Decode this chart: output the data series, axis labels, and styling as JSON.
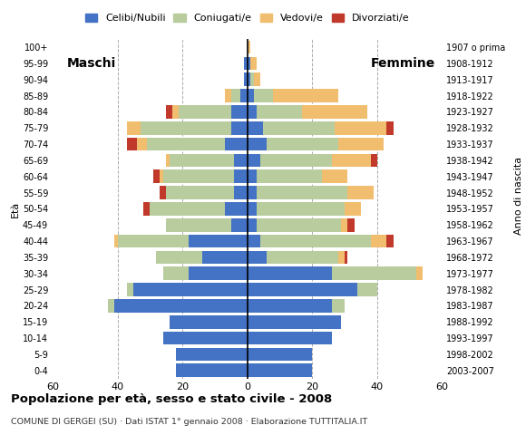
{
  "age_groups": [
    "0-4",
    "5-9",
    "10-14",
    "15-19",
    "20-24",
    "25-29",
    "30-34",
    "35-39",
    "40-44",
    "45-49",
    "50-54",
    "55-59",
    "60-64",
    "65-69",
    "70-74",
    "75-79",
    "80-84",
    "85-89",
    "90-94",
    "95-99",
    "100+"
  ],
  "birth_years": [
    "2003-2007",
    "1998-2002",
    "1993-1997",
    "1988-1992",
    "1983-1987",
    "1978-1982",
    "1973-1977",
    "1968-1972",
    "1963-1967",
    "1958-1962",
    "1953-1957",
    "1948-1952",
    "1943-1947",
    "1938-1942",
    "1933-1937",
    "1928-1932",
    "1923-1927",
    "1918-1922",
    "1913-1917",
    "1908-1912",
    "1907 o prima"
  ],
  "males": {
    "celibe": [
      22,
      22,
      26,
      24,
      41,
      35,
      18,
      14,
      18,
      5,
      7,
      4,
      4,
      4,
      7,
      5,
      5,
      2,
      1,
      1,
      0
    ],
    "coniugato": [
      0,
      0,
      0,
      0,
      2,
      2,
      8,
      14,
      22,
      20,
      23,
      21,
      22,
      20,
      24,
      28,
      16,
      3,
      0,
      0,
      0
    ],
    "vedovo": [
      0,
      0,
      0,
      0,
      0,
      0,
      0,
      0,
      1,
      0,
      0,
      0,
      1,
      1,
      3,
      4,
      2,
      2,
      0,
      0,
      0
    ],
    "divorziato": [
      0,
      0,
      0,
      0,
      0,
      0,
      0,
      0,
      0,
      0,
      2,
      2,
      2,
      0,
      3,
      0,
      2,
      0,
      0,
      0,
      0
    ]
  },
  "females": {
    "nubile": [
      20,
      20,
      26,
      29,
      26,
      34,
      26,
      6,
      4,
      3,
      3,
      3,
      3,
      4,
      6,
      5,
      3,
      2,
      1,
      1,
      0
    ],
    "coniugata": [
      0,
      0,
      0,
      0,
      4,
      6,
      26,
      22,
      34,
      26,
      27,
      28,
      20,
      22,
      22,
      22,
      14,
      6,
      1,
      0,
      0
    ],
    "vedova": [
      0,
      0,
      0,
      0,
      0,
      0,
      2,
      2,
      5,
      2,
      5,
      8,
      8,
      12,
      14,
      16,
      20,
      20,
      2,
      2,
      1
    ],
    "divorziata": [
      0,
      0,
      0,
      0,
      0,
      0,
      0,
      1,
      2,
      2,
      0,
      0,
      0,
      2,
      0,
      2,
      0,
      0,
      0,
      0,
      0
    ]
  },
  "colors": {
    "celibe_nubile": "#4472c4",
    "coniugato_coniugata": "#b8cc9e",
    "vedovo_vedova": "#f0be6e",
    "divorziato_divorziata": "#c0392b"
  },
  "xlim": 60,
  "title": "Popolazione per età, sesso e stato civile - 2008",
  "subtitle": "COMUNE DI GERGEI (SU) · Dati ISTAT 1° gennaio 2008 · Elaborazione TUTTITALIA.IT",
  "ylabel_left": "Età",
  "ylabel_right": "Anno di nascita",
  "legend_labels": [
    "Celibi/Nubili",
    "Coniugati/e",
    "Vedovi/e",
    "Divorziati/e"
  ],
  "label_maschi": "Maschi",
  "label_femmine": "Femmine",
  "bg_color": "#ffffff",
  "grid_color": "#aaaaaa"
}
